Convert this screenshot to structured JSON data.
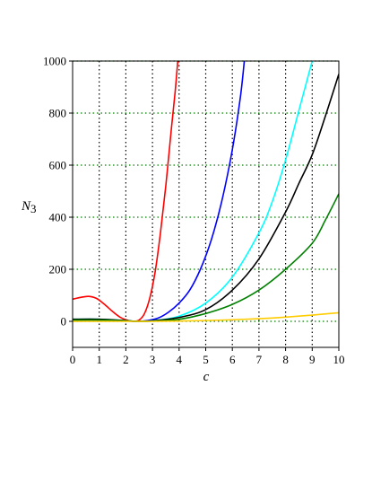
{
  "chart_data": {
    "type": "line",
    "xlabel": "c",
    "ylabel_main": "N",
    "ylabel_sub": "3",
    "xlim": [
      0,
      10
    ],
    "ylim": [
      -100,
      1000
    ],
    "x_ticks": [
      0,
      1,
      2,
      3,
      4,
      5,
      6,
      7,
      8,
      9,
      10
    ],
    "y_ticks": [
      0,
      200,
      400,
      600,
      800,
      1000
    ],
    "grid": true,
    "x_grid_color": "#000000",
    "y_grid_color": "#008000",
    "series": [
      {
        "color": "#ff0000",
        "x": [
          0,
          0.3,
          0.6,
          0.9,
          1.2,
          1.5,
          1.8,
          2.1,
          2.3,
          2.5,
          2.7,
          2.9,
          3.1,
          3.3,
          3.5,
          3.7,
          3.85,
          3.95
        ],
        "y": [
          85,
          92,
          96,
          88,
          65,
          38,
          15,
          3,
          0,
          5,
          30,
          90,
          190,
          340,
          520,
          730,
          880,
          1000
        ]
      },
      {
        "color": "#0000ff",
        "x": [
          0,
          1,
          2,
          2.4,
          2.8,
          3.2,
          3.6,
          4,
          4.4,
          4.8,
          5.2,
          5.6,
          6,
          6.3,
          6.45
        ],
        "y": [
          5,
          5,
          2,
          0,
          3,
          12,
          35,
          70,
          120,
          200,
          310,
          460,
          660,
          860,
          1000
        ]
      },
      {
        "color": "#00ffff",
        "x": [
          0,
          1,
          2,
          2.4,
          3,
          4,
          5,
          6,
          7,
          7.5,
          8,
          8.5,
          9
        ],
        "y": [
          8,
          8,
          3,
          0,
          2,
          20,
          70,
          170,
          340,
          460,
          620,
          810,
          1000
        ]
      },
      {
        "color": "#000000",
        "x": [
          0,
          1,
          2,
          2.4,
          3,
          4,
          5,
          6,
          7,
          8,
          8.5,
          9,
          9.5,
          10
        ],
        "y": [
          8,
          8,
          3,
          0,
          2,
          15,
          45,
          120,
          240,
          420,
          530,
          640,
          790,
          950
        ]
      },
      {
        "color": "#008000",
        "x": [
          0,
          1,
          2,
          2.4,
          3,
          4,
          5,
          6,
          7,
          8,
          9,
          9.5,
          10
        ],
        "y": [
          5,
          5,
          2,
          0,
          1,
          8,
          30,
          65,
          120,
          200,
          300,
          390,
          490
        ]
      },
      {
        "color": "#ffcc00",
        "x": [
          0,
          1,
          2,
          3,
          4,
          5,
          6,
          7,
          8,
          9,
          10
        ],
        "y": [
          0,
          0,
          0,
          0,
          1,
          3,
          6,
          10,
          16,
          24,
          33
        ]
      }
    ]
  }
}
